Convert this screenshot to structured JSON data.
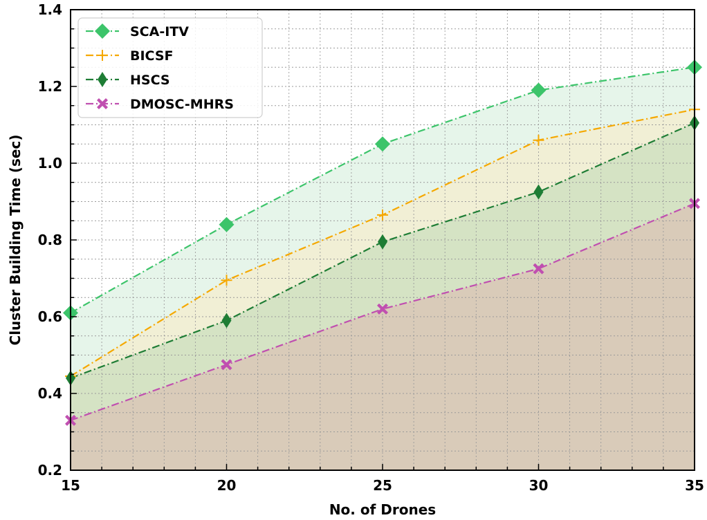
{
  "chart_data": {
    "type": "area",
    "xlabel": "No. of Drones",
    "ylabel": "Cluster Building Time (sec)",
    "x": [
      15,
      20,
      25,
      30,
      35
    ],
    "xlim": [
      15,
      35
    ],
    "ylim": [
      0.2,
      1.4
    ],
    "xticks": [
      "15",
      "20",
      "25",
      "30",
      "35"
    ],
    "yticks": [
      "0.2",
      "0.4",
      "0.6",
      "0.8",
      "1.0",
      "1.2",
      "1.4"
    ],
    "grid": true,
    "legend_position": "upper-left",
    "series": [
      {
        "name": "SCA-ITV",
        "values": [
          0.61,
          0.84,
          1.05,
          1.19,
          1.25
        ],
        "color": "#3cc46a",
        "marker": "diamond",
        "fill": "#e6f5ea"
      },
      {
        "name": "BICSF",
        "values": [
          0.445,
          0.695,
          0.865,
          1.06,
          1.14
        ],
        "color": "#f5a800",
        "marker": "plus",
        "fill": "#f1efd5"
      },
      {
        "name": "HSCS",
        "values": [
          0.44,
          0.59,
          0.795,
          0.925,
          1.105
        ],
        "color": "#1e7d35",
        "marker": "thin-diamond",
        "fill": "#d5e3c4"
      },
      {
        "name": "DMOSC-MHRS",
        "values": [
          0.33,
          0.475,
          0.62,
          0.725,
          0.895
        ],
        "color": "#c04fb0",
        "marker": "x-filled",
        "fill": "#d9cbb9"
      }
    ]
  }
}
